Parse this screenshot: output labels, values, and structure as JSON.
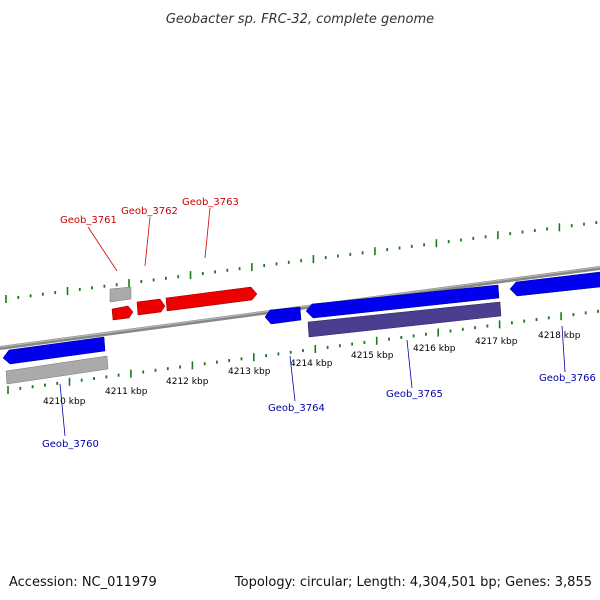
{
  "title": "Geobacter sp. FRC-32, complete genome",
  "footer": {
    "accession": "Accession: NC_011979",
    "summary": "Topology: circular; Length: 4,304,501 bp; Genes: 3,855"
  },
  "colors": {
    "backbone": "#888888",
    "tick": "#1a7a1a",
    "forward_gene": "#0000ee",
    "reverse_gene": "#0000ee",
    "highlight_gene": "#ee0000",
    "pseudo_gene": "#aaaaaa",
    "rna_feature": "#4a3f8f",
    "label_forward": "#0000aa",
    "label_highlight": "#cc0000"
  },
  "scale": {
    "unit": "kbp",
    "tick_labels": [
      "4210 kbp",
      "4211 kbp",
      "4212 kbp",
      "4213 kbp",
      "4214 kbp",
      "4215 kbp",
      "4216 kbp",
      "4217 kbp",
      "4218 kbp"
    ]
  },
  "genes": [
    {
      "id": "Geob_3760",
      "label": "Geob_3760",
      "group": "lower"
    },
    {
      "id": "Geob_3761",
      "label": "Geob_3761",
      "group": "upper"
    },
    {
      "id": "Geob_3762",
      "label": "Geob_3762",
      "group": "upper"
    },
    {
      "id": "Geob_3763",
      "label": "Geob_3763",
      "group": "upper"
    },
    {
      "id": "Geob_3764",
      "label": "Geob_3764",
      "group": "lower"
    },
    {
      "id": "Geob_3765",
      "label": "Geob_3765",
      "group": "lower"
    },
    {
      "id": "Geob_3766",
      "label": "Geob_3766",
      "group": "lower"
    }
  ]
}
